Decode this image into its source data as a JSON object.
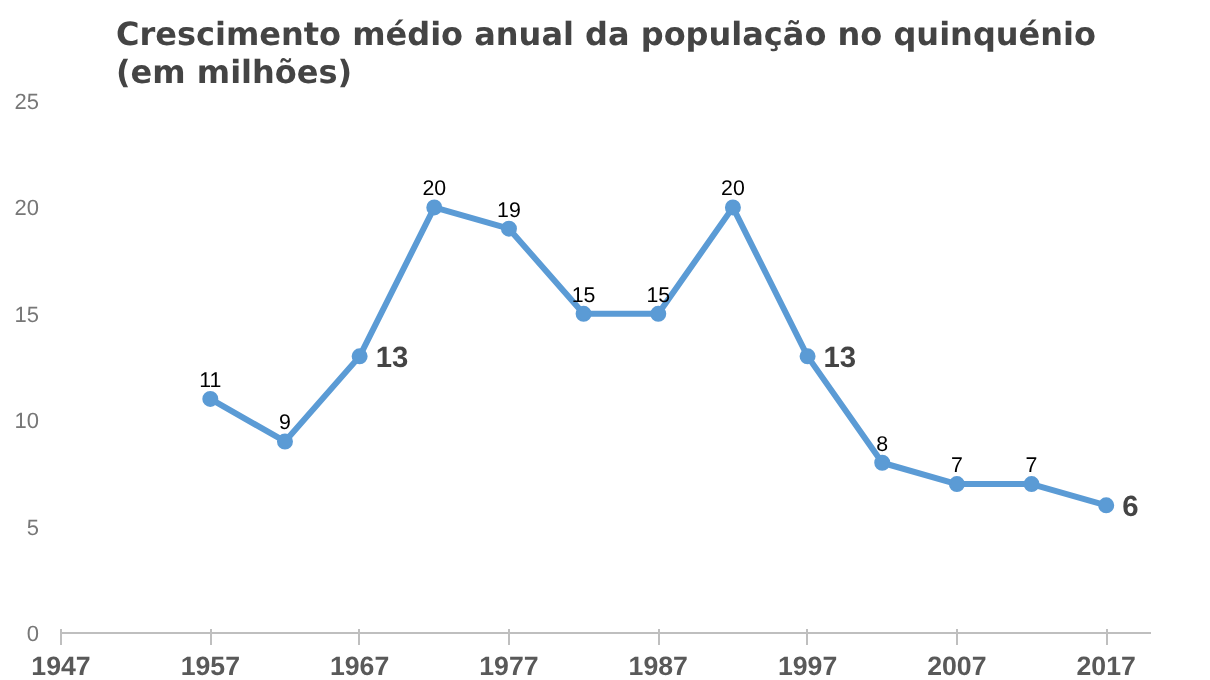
{
  "chart_data": {
    "type": "line",
    "title": "Crescimento médio anual da população no quinquénio\n(em milhões)",
    "x": [
      1957,
      1962,
      1967,
      1972,
      1977,
      1982,
      1987,
      1992,
      1997,
      2002,
      2007,
      2012,
      2017
    ],
    "series": [
      {
        "color": "#5b9bd5",
        "values": [
          11,
          9,
          13,
          20,
          19,
          15,
          15,
          20,
          13,
          8,
          7,
          7,
          6
        ]
      }
    ],
    "xlim": [
      1947,
      2020
    ],
    "xticks": [
      1947,
      1957,
      1967,
      1977,
      1987,
      1997,
      2007,
      2017
    ],
    "ylim": [
      0,
      25
    ],
    "yticks": [
      0,
      5,
      10,
      15,
      20,
      25
    ],
    "marker": "circle",
    "data_labels": true,
    "grid": false
  }
}
